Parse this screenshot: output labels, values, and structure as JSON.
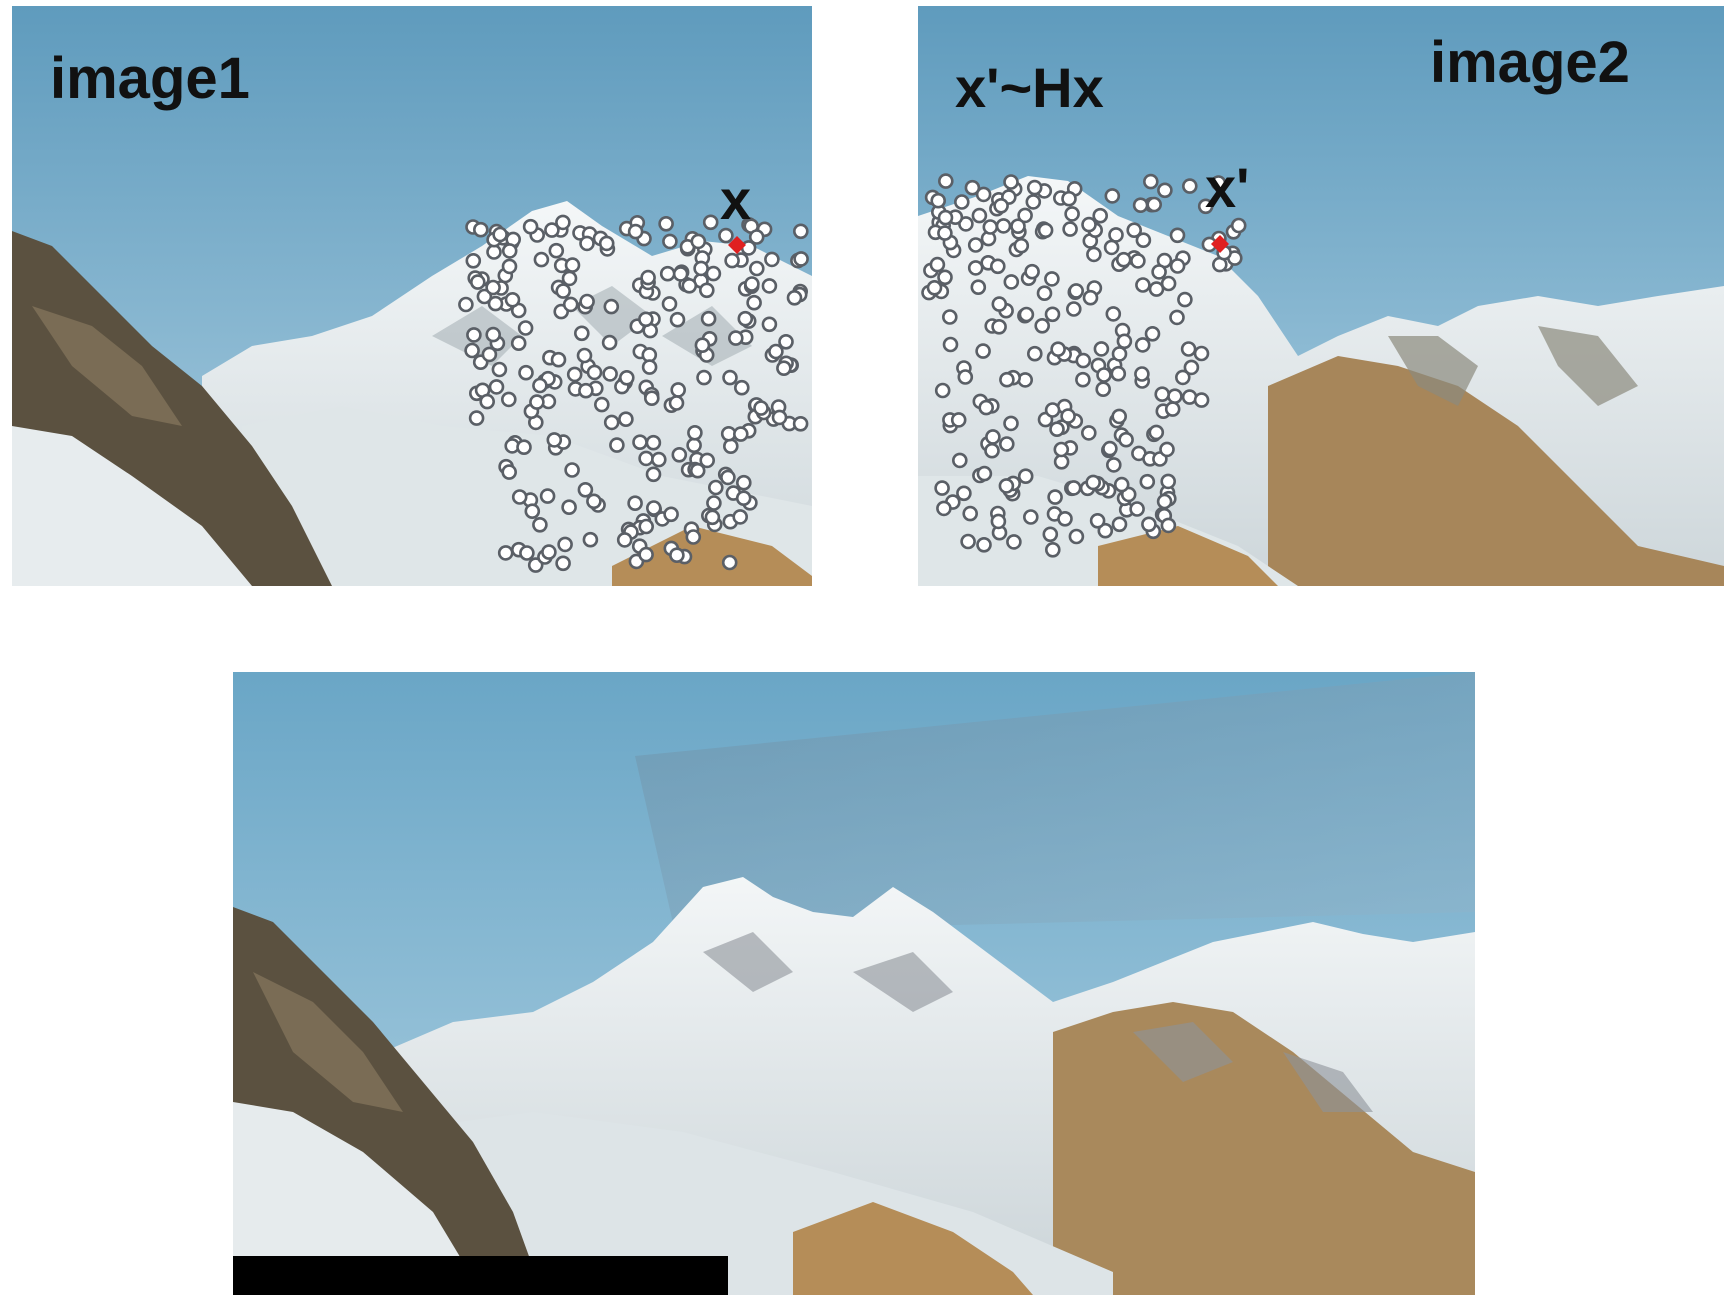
{
  "labels": {
    "image1": "image1",
    "image2": "image2",
    "point_x": "x",
    "point_x_prime": "x'",
    "homography": "x'~Hx"
  },
  "colors": {
    "sky_top": "#5f9bbd",
    "sky_bottom": "#a9cde0",
    "snow": "#eef3f5",
    "rock_dark": "#5b5140",
    "rock_brown": "#b58d58",
    "feature_fill": "#ffffff",
    "feature_stroke": "#5a5f66",
    "correspondence_point": "#e02020"
  },
  "icons": {
    "feature_point": "white-circle-marker",
    "correspondence_point": "red-diamond-marker"
  }
}
